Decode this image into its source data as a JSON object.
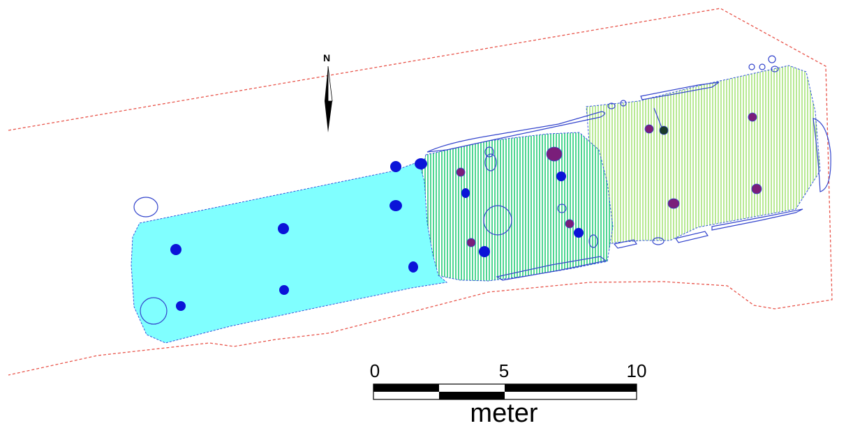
{
  "map": {
    "colors": {
      "boundary": "#e8544a",
      "area_cyan": "#80ffff",
      "area_cyan_edge": "#3355dd",
      "hatch_green": "#22cc77",
      "hatch_light": "#99e066",
      "feature_outline": "#3344cc",
      "post_blue": "#0b14d8",
      "post_purple": "#7a1e7a",
      "post_dark": "#1a3a2a"
    },
    "north": {
      "label": "N",
      "icon": "north-arrow-icon"
    },
    "scale": {
      "ticks": [
        "0",
        "5",
        "10"
      ],
      "unit": "meter"
    }
  }
}
